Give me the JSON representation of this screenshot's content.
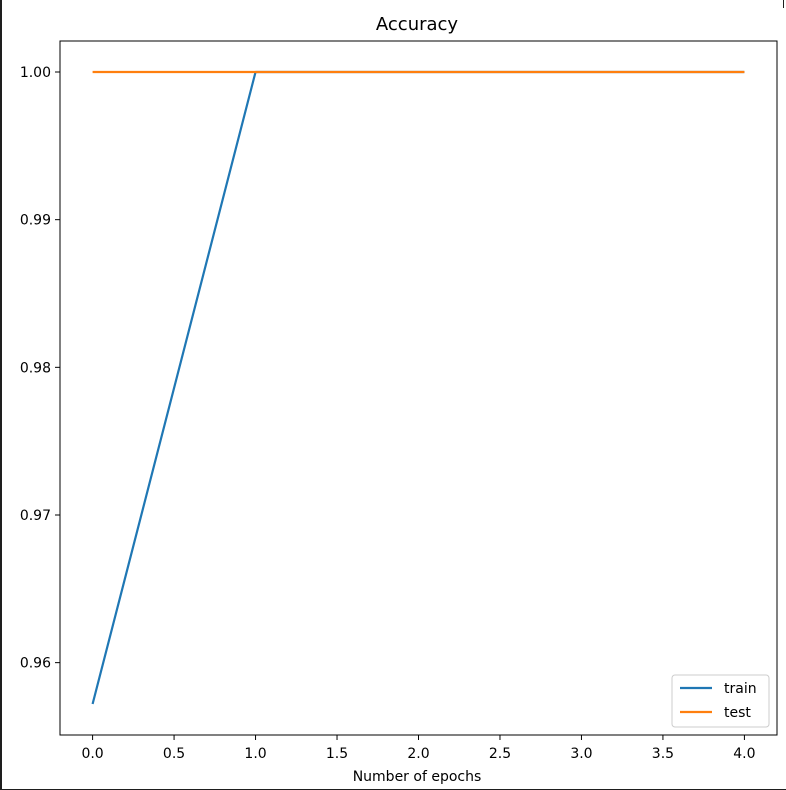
{
  "chart_data": {
    "type": "line",
    "title": "Accuracy",
    "xlabel": "Number of epochs",
    "ylabel": "",
    "xlim": [
      -0.2,
      4.2
    ],
    "ylim": [
      0.9551,
      1.0021
    ],
    "xticks": [
      "0.0",
      "0.5",
      "1.0",
      "1.5",
      "2.0",
      "2.5",
      "3.0",
      "3.5",
      "4.0"
    ],
    "yticks": [
      "0.96",
      "0.97",
      "0.98",
      "0.99",
      "1.00"
    ],
    "grid": false,
    "legend_position": "lower-right",
    "x": [
      0,
      1,
      2,
      3,
      4
    ],
    "series": [
      {
        "name": "train",
        "color": "#1f77b4",
        "values": [
          0.9572,
          1.0,
          1.0,
          1.0,
          1.0
        ]
      },
      {
        "name": "test",
        "color": "#ff7f0e",
        "values": [
          1.0,
          1.0,
          1.0,
          1.0,
          1.0
        ]
      }
    ]
  }
}
